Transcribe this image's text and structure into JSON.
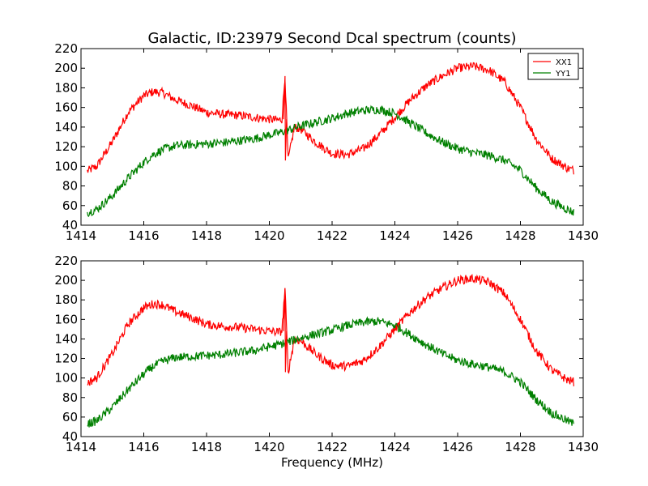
{
  "title": "Galactic, ID:23979 Second Dcal spectrum (counts)",
  "xlabel": "Frequency (MHz)",
  "colors": {
    "XX1": "#ff0000",
    "YY1": "#008000"
  },
  "chart_data": [
    {
      "type": "line",
      "title": "Galactic, ID:23979 Second Dcal spectrum (counts)",
      "xlabel": "",
      "ylabel": "",
      "xlim": [
        1414,
        1430
      ],
      "ylim": [
        40,
        220
      ],
      "xticks": [
        "1414",
        "1416",
        "1418",
        "1420",
        "1422",
        "1424",
        "1426",
        "1428",
        "1430"
      ],
      "yticks": [
        "40",
        "60",
        "80",
        "100",
        "120",
        "140",
        "160",
        "180",
        "200",
        "220"
      ],
      "legend": {
        "placement": "top-right",
        "entries": [
          "XX1",
          "YY1"
        ]
      },
      "grid": false,
      "x": [
        1414.2,
        1414.5,
        1415.0,
        1415.5,
        1416.0,
        1416.3,
        1416.6,
        1417.0,
        1417.5,
        1418.0,
        1418.5,
        1419.0,
        1419.5,
        1420.0,
        1420.3,
        1420.4,
        1420.5,
        1420.6,
        1420.8,
        1421.0,
        1421.5,
        1422.0,
        1422.5,
        1423.0,
        1423.5,
        1424.0,
        1424.5,
        1425.0,
        1425.5,
        1426.0,
        1426.5,
        1427.0,
        1427.5,
        1428.0,
        1428.5,
        1429.0,
        1429.5,
        1429.7
      ],
      "series": [
        {
          "name": "XX1",
          "values": [
            95,
            100,
            125,
            155,
            172,
            176,
            175,
            168,
            162,
            155,
            153,
            152,
            150,
            148,
            147,
            148,
            192,
            106,
            140,
            138,
            124,
            113,
            112,
            118,
            132,
            150,
            168,
            182,
            192,
            200,
            202,
            198,
            186,
            160,
            128,
            108,
            98,
            96
          ]
        },
        {
          "name": "YY1",
          "values": [
            53,
            56,
            70,
            88,
            104,
            112,
            117,
            121,
            122,
            123,
            124,
            126,
            128,
            132,
            134,
            135,
            136,
            137,
            139,
            141,
            145,
            149,
            154,
            157,
            158,
            154,
            144,
            134,
            125,
            118,
            114,
            111,
            106,
            96,
            78,
            64,
            56,
            53
          ]
        }
      ]
    },
    {
      "type": "line",
      "title": "",
      "xlabel": "Frequency (MHz)",
      "ylabel": "",
      "xlim": [
        1414,
        1430
      ],
      "ylim": [
        40,
        220
      ],
      "xticks": [
        "1414",
        "1416",
        "1418",
        "1420",
        "1422",
        "1424",
        "1426",
        "1428",
        "1430"
      ],
      "yticks": [
        "40",
        "60",
        "80",
        "100",
        "120",
        "140",
        "160",
        "180",
        "200",
        "220"
      ],
      "legend": null,
      "grid": false,
      "x": [
        1414.2,
        1414.5,
        1415.0,
        1415.5,
        1416.0,
        1416.3,
        1416.6,
        1417.0,
        1417.5,
        1418.0,
        1418.5,
        1419.0,
        1419.5,
        1420.0,
        1420.3,
        1420.4,
        1420.5,
        1420.6,
        1420.8,
        1421.0,
        1421.5,
        1422.0,
        1422.5,
        1423.0,
        1423.5,
        1424.0,
        1424.5,
        1425.0,
        1425.5,
        1426.0,
        1426.5,
        1427.0,
        1427.5,
        1428.0,
        1428.5,
        1429.0,
        1429.5,
        1429.7
      ],
      "series": [
        {
          "name": "XX1",
          "values": [
            95,
            100,
            125,
            155,
            172,
            176,
            175,
            168,
            162,
            155,
            153,
            152,
            150,
            148,
            147,
            148,
            192,
            106,
            140,
            138,
            124,
            113,
            112,
            118,
            132,
            150,
            168,
            182,
            192,
            200,
            202,
            198,
            186,
            160,
            128,
            108,
            98,
            96
          ]
        },
        {
          "name": "YY1",
          "values": [
            53,
            56,
            70,
            88,
            104,
            112,
            117,
            121,
            122,
            123,
            124,
            126,
            128,
            132,
            134,
            135,
            136,
            137,
            139,
            141,
            145,
            149,
            154,
            157,
            158,
            154,
            144,
            134,
            125,
            118,
            114,
            111,
            106,
            96,
            78,
            64,
            56,
            53
          ]
        }
      ]
    }
  ]
}
